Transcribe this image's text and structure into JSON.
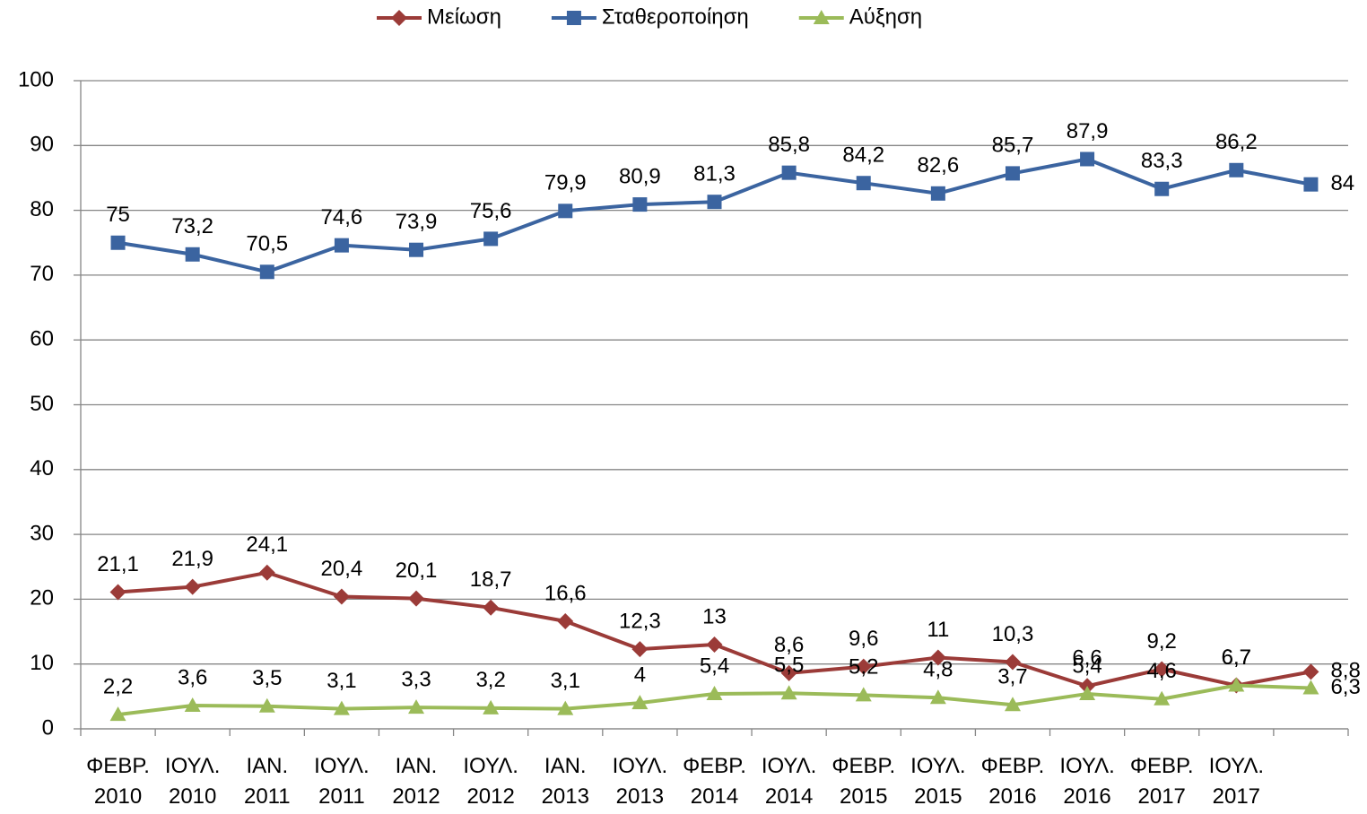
{
  "chart_data": {
    "type": "line",
    "categories": [
      "ΦΕΒΡ. 2010",
      "ΙΟΥΛ. 2010",
      "ΙΑΝ. 2011",
      "ΙΟΥΛ. 2011",
      "ΙΑΝ. 2012",
      "ΙΟΥΛ. 2012",
      "ΙΑΝ. 2013",
      "ΙΟΥΛ. 2013",
      "ΦΕΒΡ. 2014",
      "ΙΟΥΛ. 2014",
      "ΦΕΒΡ. 2015",
      "ΙΟΥΛ. 2015",
      "ΦΕΒΡ. 2016",
      "ΙΟΥΛ. 2016",
      "ΦΕΒΡ. 2017",
      "ΙΟΥΛ. 2017",
      null
    ],
    "series": [
      {
        "name": "Μείωση",
        "color": "#9b3b38",
        "marker": "diamond",
        "values": [
          21.1,
          21.9,
          24.1,
          20.4,
          20.1,
          18.7,
          16.6,
          12.3,
          13,
          8.6,
          9.6,
          11,
          10.3,
          6.6,
          9.2,
          6.7,
          8.8
        ],
        "value_labels": [
          "21,1",
          "21,9",
          "24,1",
          "20,4",
          "20,1",
          "18,7",
          "16,6",
          "12,3",
          "13",
          "8,6",
          "9,6",
          "11",
          "10,3",
          "6,6",
          "9,2",
          "6,7",
          "8,8"
        ]
      },
      {
        "name": "Σταθεροποίηση",
        "color": "#3b64a0",
        "marker": "square",
        "values": [
          75,
          73.2,
          70.5,
          74.6,
          73.9,
          75.6,
          79.9,
          80.9,
          81.3,
          85.8,
          84.2,
          82.6,
          85.7,
          87.9,
          83.3,
          86.2,
          84
        ],
        "value_labels": [
          "75",
          "73,2",
          "70,5",
          "74,6",
          "73,9",
          "75,6",
          "79,9",
          "80,9",
          "81,3",
          "85,8",
          "84,2",
          "82,6",
          "85,7",
          "87,9",
          "83,3",
          "86,2",
          "84"
        ]
      },
      {
        "name": "Αύξηση",
        "color": "#9bbb59",
        "marker": "triangle",
        "values": [
          2.2,
          3.6,
          3.5,
          3.1,
          3.3,
          3.2,
          3.1,
          4,
          5.4,
          5.5,
          5.2,
          4.8,
          3.7,
          5.4,
          4.6,
          6.7,
          6.3
        ],
        "value_labels": [
          "2,2",
          "3,6",
          "3,5",
          "3,1",
          "3,3",
          "3,2",
          "3,1",
          "4",
          "5,4",
          "5,5",
          "5,2",
          "4,8",
          "3,7",
          "5,4",
          "4,6",
          "6,7",
          "6,3"
        ]
      }
    ],
    "ylim": [
      0,
      100
    ],
    "yticks": [
      0,
      10,
      20,
      30,
      40,
      50,
      60,
      70,
      80,
      90,
      100
    ],
    "grid": true,
    "legend": "top"
  }
}
